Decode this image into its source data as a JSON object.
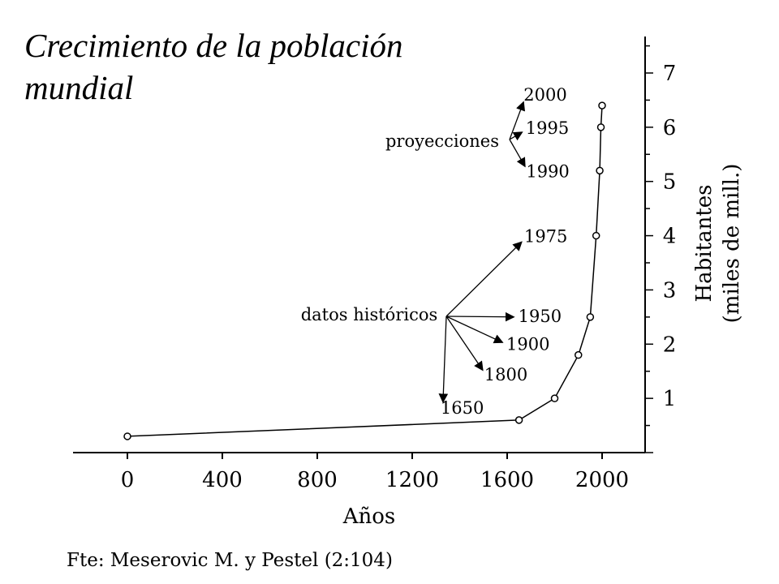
{
  "title": "Crecimiento de la población mundial",
  "source_note": "Fte: Meserovic M. y Pestel (2:104)",
  "chart_data": {
    "type": "line",
    "xlabel": "Años",
    "ylabel": "Habitantes",
    "ylabel_sub": "(miles de mill.)",
    "xlim": [
      0,
      2000
    ],
    "ylim": [
      0,
      7
    ],
    "x_ticks": [
      0,
      400,
      800,
      1200,
      1600,
      2000
    ],
    "y_ticks": [
      1,
      2,
      3,
      4,
      5,
      6,
      7
    ],
    "grid": false,
    "series": [
      {
        "points": [
          {
            "x": 0,
            "y": 0.3,
            "label": ""
          },
          {
            "x": 1650,
            "y": 0.6,
            "label": "1650"
          },
          {
            "x": 1800,
            "y": 1.0,
            "label": "1800"
          },
          {
            "x": 1900,
            "y": 1.8,
            "label": "1900"
          },
          {
            "x": 1950,
            "y": 2.5,
            "label": "1950"
          },
          {
            "x": 1975,
            "y": 4.0,
            "label": "1975"
          },
          {
            "x": 1990,
            "y": 5.2,
            "label": "1990"
          },
          {
            "x": 1995,
            "y": 6.0,
            "label": "1995"
          },
          {
            "x": 2000,
            "y": 6.4,
            "label": "2000"
          }
        ]
      }
    ],
    "annotations": [
      {
        "text": "datos históricos",
        "targets": [
          "1650",
          "1800",
          "1900",
          "1950",
          "1975"
        ]
      },
      {
        "text": "proyecciones",
        "targets": [
          "1990",
          "1995",
          "2000"
        ]
      }
    ]
  }
}
